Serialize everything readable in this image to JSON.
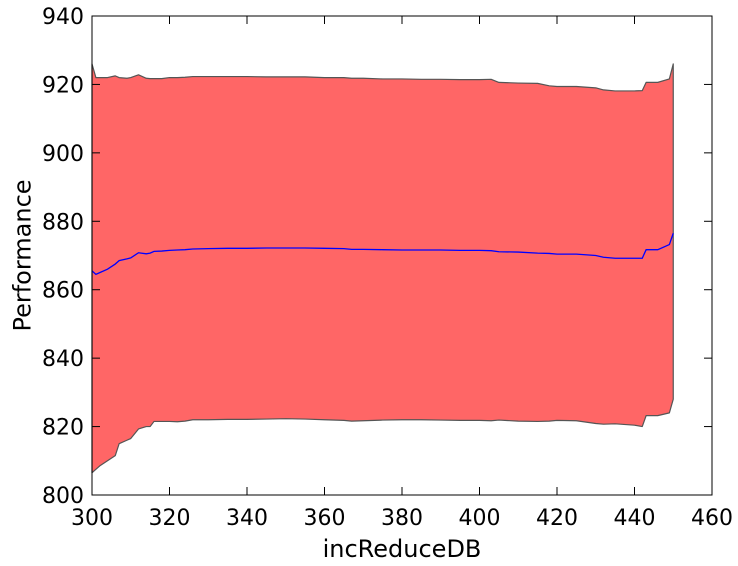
{
  "chart_data": {
    "type": "area",
    "title": "",
    "xlabel": "incReduceDB",
    "ylabel": "Performance",
    "xlim": [
      300,
      460
    ],
    "ylim": [
      800,
      940
    ],
    "xticks": [
      300,
      320,
      340,
      360,
      380,
      400,
      420,
      440,
      460
    ],
    "yticks": [
      800,
      820,
      840,
      860,
      880,
      900,
      920,
      940
    ],
    "xtick_labels": [
      "300",
      "320",
      "340",
      "360",
      "380",
      "400",
      "420",
      "440",
      "460"
    ],
    "ytick_labels": [
      "800",
      "820",
      "840",
      "860",
      "880",
      "900",
      "920",
      "940"
    ],
    "grid": false,
    "legend": "none",
    "colors": {
      "band": "#ff6666",
      "band_edge": "#555555",
      "mean_line": "#0000ff"
    },
    "x": [
      300,
      301,
      302,
      304,
      306,
      307,
      309,
      310,
      312,
      314,
      315,
      316,
      318,
      320,
      322,
      324,
      326,
      330,
      335,
      340,
      345,
      350,
      355,
      360,
      365,
      367,
      370,
      375,
      380,
      385,
      390,
      395,
      400,
      403,
      405,
      410,
      415,
      418,
      420,
      425,
      430,
      432,
      435,
      440,
      442,
      443,
      446,
      449,
      450
    ],
    "series": [
      {
        "role": "upper",
        "values": [
          926,
          922,
          922,
          922,
          922.5,
          922,
          921.8,
          922,
          922.8,
          921.8,
          921.7,
          921.7,
          921.7,
          922,
          922,
          922.1,
          922.3,
          922.3,
          922.3,
          922.3,
          922.2,
          922.2,
          922.2,
          922,
          922,
          921.8,
          921.8,
          921.6,
          921.6,
          921.5,
          921.5,
          921.4,
          921.4,
          921.5,
          920.6,
          920.4,
          920.3,
          919.6,
          919.4,
          919.4,
          919.0,
          918.4,
          918.1,
          918.1,
          918.2,
          920.6,
          920.6,
          921.6,
          926
        ]
      },
      {
        "role": "mean",
        "values": [
          865.5,
          864.5,
          865,
          866,
          867.5,
          868.5,
          869,
          869.3,
          870.8,
          870.5,
          870.7,
          871.2,
          871.3,
          871.5,
          871.6,
          871.7,
          871.9,
          872,
          872.1,
          872.1,
          872.2,
          872.2,
          872.2,
          872.1,
          872,
          871.8,
          871.8,
          871.7,
          871.6,
          871.6,
          871.6,
          871.5,
          871.5,
          871.4,
          871.1,
          871,
          870.7,
          870.6,
          870.4,
          870.4,
          870,
          869.5,
          869.2,
          869.2,
          869.2,
          871.7,
          871.7,
          873.2,
          876.5
        ]
      },
      {
        "role": "lower",
        "values": [
          806.5,
          807.5,
          808.5,
          810,
          811.5,
          815,
          816,
          816.5,
          819.3,
          820,
          820,
          821.5,
          821.5,
          821.5,
          821.4,
          821.6,
          822,
          822,
          822.1,
          822.1,
          822.2,
          822.3,
          822.2,
          822,
          821.8,
          821.6,
          821.7,
          821.9,
          822,
          822,
          821.9,
          821.8,
          821.8,
          821.7,
          821.9,
          821.6,
          821.5,
          821.6,
          821.8,
          821.7,
          820.9,
          820.7,
          820.8,
          820.4,
          820.0,
          823.2,
          823.2,
          824,
          828
        ]
      }
    ]
  }
}
